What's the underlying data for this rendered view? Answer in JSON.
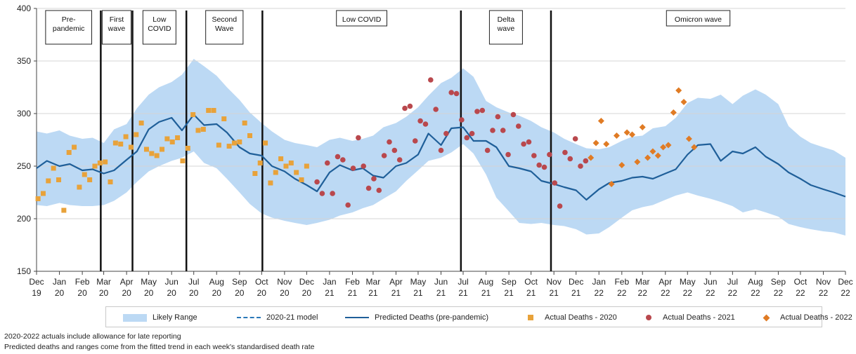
{
  "chart_data": {
    "type": "line",
    "ylim": [
      150,
      400
    ],
    "yticks": [
      150,
      200,
      250,
      300,
      350,
      400
    ],
    "x_range": [
      "2019-12-01",
      "2022-12-01"
    ],
    "x_ticks": [
      {
        "date": "2019-12-01",
        "label": [
          "Dec",
          "19"
        ]
      },
      {
        "date": "2020-01-01",
        "label": [
          "Jan",
          "20"
        ]
      },
      {
        "date": "2020-02-01",
        "label": [
          "Feb",
          "20"
        ]
      },
      {
        "date": "2020-03-01",
        "label": [
          "Mar",
          "20"
        ]
      },
      {
        "date": "2020-04-01",
        "label": [
          "Apr",
          "20"
        ]
      },
      {
        "date": "2020-05-01",
        "label": [
          "May",
          "20"
        ]
      },
      {
        "date": "2020-06-01",
        "label": [
          "Jun",
          "20"
        ]
      },
      {
        "date": "2020-07-01",
        "label": [
          "Jul",
          "20"
        ]
      },
      {
        "date": "2020-08-01",
        "label": [
          "Aug",
          "20"
        ]
      },
      {
        "date": "2020-09-01",
        "label": [
          "Sep",
          "20"
        ]
      },
      {
        "date": "2020-10-01",
        "label": [
          "Oct",
          "20"
        ]
      },
      {
        "date": "2020-11-01",
        "label": [
          "Nov",
          "20"
        ]
      },
      {
        "date": "2020-12-01",
        "label": [
          "Dec",
          "20"
        ]
      },
      {
        "date": "2021-01-01",
        "label": [
          "Jan",
          "21"
        ]
      },
      {
        "date": "2021-02-01",
        "label": [
          "Feb",
          "21"
        ]
      },
      {
        "date": "2021-03-01",
        "label": [
          "Mar",
          "21"
        ]
      },
      {
        "date": "2021-04-01",
        "label": [
          "Apr",
          "21"
        ]
      },
      {
        "date": "2021-05-01",
        "label": [
          "May",
          "21"
        ]
      },
      {
        "date": "2021-06-01",
        "label": [
          "Jun",
          "21"
        ]
      },
      {
        "date": "2021-07-01",
        "label": [
          "Jul",
          "21"
        ]
      },
      {
        "date": "2021-08-01",
        "label": [
          "Aug",
          "21"
        ]
      },
      {
        "date": "2021-09-01",
        "label": [
          "Sep",
          "21"
        ]
      },
      {
        "date": "2021-10-01",
        "label": [
          "Oct",
          "21"
        ]
      },
      {
        "date": "2021-11-01",
        "label": [
          "Nov",
          "21"
        ]
      },
      {
        "date": "2021-12-01",
        "label": [
          "Dec",
          "21"
        ]
      },
      {
        "date": "2022-01-01",
        "label": [
          "Jan",
          "22"
        ]
      },
      {
        "date": "2022-02-01",
        "label": [
          "Feb",
          "22"
        ]
      },
      {
        "date": "2022-03-01",
        "label": [
          "Mar",
          "22"
        ]
      },
      {
        "date": "2022-04-01",
        "label": [
          "Apr",
          "22"
        ]
      },
      {
        "date": "2022-05-01",
        "label": [
          "May",
          "22"
        ]
      },
      {
        "date": "2022-06-01",
        "label": [
          "Jun",
          "22"
        ]
      },
      {
        "date": "2022-07-01",
        "label": [
          "Jul",
          "22"
        ]
      },
      {
        "date": "2022-08-01",
        "label": [
          "Aug",
          "22"
        ]
      },
      {
        "date": "2022-09-01",
        "label": [
          "Sep",
          "22"
        ]
      },
      {
        "date": "2022-10-01",
        "label": [
          "Oct",
          "22"
        ]
      },
      {
        "date": "2022-11-01",
        "label": [
          "Nov",
          "22"
        ]
      },
      {
        "date": "2022-12-01",
        "label": [
          "Dec",
          "22"
        ]
      }
    ],
    "phases": [
      {
        "label": [
          "Pre-",
          "pandemic"
        ],
        "start": "2019-12-01",
        "end": "2020-02-26"
      },
      {
        "label": [
          "First",
          "wave"
        ],
        "start": "2020-02-26",
        "end": "2020-04-09"
      },
      {
        "label": [
          "Low",
          "COVID"
        ],
        "start": "2020-04-09",
        "end": "2020-06-21"
      },
      {
        "label": [
          "Second",
          "Wave"
        ],
        "start": "2020-06-21",
        "end": "2020-10-02"
      },
      {
        "label": [
          "Low COVID"
        ],
        "start": "2020-10-02",
        "end": "2021-06-28"
      },
      {
        "label": [
          "Delta",
          "wave"
        ],
        "start": "2021-06-28",
        "end": "2021-10-28"
      },
      {
        "label": [
          "Omicron wave"
        ],
        "start": "2021-10-28",
        "end": "2022-12-01"
      }
    ],
    "dividers": [
      "2020-02-26",
      "2020-04-09",
      "2020-06-21",
      "2020-10-02",
      "2021-06-28",
      "2021-10-28"
    ],
    "series": [
      {
        "name": "Likely Range",
        "kind": "band",
        "color": "#bcd9f4",
        "x": [
          "2019-12-01",
          "2019-12-15",
          "2020-01-01",
          "2020-01-15",
          "2020-02-01",
          "2020-02-15",
          "2020-03-01",
          "2020-03-15",
          "2020-04-01",
          "2020-04-15",
          "2020-05-01",
          "2020-05-15",
          "2020-06-01",
          "2020-06-15",
          "2020-07-01",
          "2020-07-15",
          "2020-08-01",
          "2020-08-15",
          "2020-09-01",
          "2020-09-15",
          "2020-10-01",
          "2020-10-15",
          "2020-11-01",
          "2020-11-15",
          "2020-12-01",
          "2020-12-15",
          "2021-01-01",
          "2021-01-15",
          "2021-02-01",
          "2021-02-15",
          "2021-03-01",
          "2021-03-15",
          "2021-04-01",
          "2021-04-15",
          "2021-05-01",
          "2021-05-15",
          "2021-06-01",
          "2021-06-15",
          "2021-07-01",
          "2021-07-15",
          "2021-08-01",
          "2021-08-15",
          "2021-09-01",
          "2021-09-15",
          "2021-10-01",
          "2021-10-15",
          "2021-11-01",
          "2021-11-15",
          "2021-12-01",
          "2021-12-15",
          "2022-01-01",
          "2022-01-15",
          "2022-02-01",
          "2022-02-15",
          "2022-03-01",
          "2022-03-15",
          "2022-04-01",
          "2022-04-15",
          "2022-05-01",
          "2022-05-15",
          "2022-06-01",
          "2022-06-15",
          "2022-07-01",
          "2022-07-15",
          "2022-08-01",
          "2022-08-15",
          "2022-09-01",
          "2022-09-15",
          "2022-10-01",
          "2022-10-15",
          "2022-11-01",
          "2022-11-15",
          "2022-12-01"
        ],
        "upper": [
          283,
          281,
          284,
          279,
          276,
          277,
          272,
          285,
          290,
          305,
          318,
          325,
          330,
          337,
          352,
          345,
          336,
          325,
          313,
          301,
          291,
          283,
          275,
          272,
          270,
          268,
          275,
          277,
          274,
          276,
          279,
          287,
          291,
          297,
          306,
          317,
          329,
          334,
          343,
          335,
          312,
          306,
          301,
          298,
          293,
          287,
          282,
          276,
          271,
          267,
          266,
          268,
          274,
          278,
          279,
          286,
          288,
          296,
          310,
          315,
          314,
          318,
          309,
          317,
          323,
          318,
          309,
          288,
          278,
          272,
          268,
          265,
          258
        ],
        "lower": [
          213,
          212,
          215,
          213,
          212,
          212,
          213,
          217,
          225,
          235,
          245,
          250,
          255,
          258,
          264,
          253,
          248,
          238,
          225,
          214,
          205,
          201,
          198,
          196,
          194,
          196,
          199,
          203,
          206,
          210,
          213,
          219,
          226,
          236,
          246,
          255,
          258,
          263,
          271,
          262,
          242,
          220,
          207,
          196,
          195,
          196,
          194,
          193,
          190,
          185,
          186,
          192,
          201,
          208,
          211,
          213,
          218,
          222,
          225,
          222,
          219,
          216,
          212,
          206,
          209,
          206,
          202,
          195,
          192,
          190,
          188,
          187,
          184
        ]
      },
      {
        "name": "Predicted Deaths (pre-pandemic)",
        "kind": "line",
        "color": "#1f5f99",
        "x": [
          "2019-12-01",
          "2019-12-15",
          "2020-01-01",
          "2020-01-15",
          "2020-02-01",
          "2020-02-15",
          "2020-03-01",
          "2020-03-15",
          "2020-04-01",
          "2020-04-15",
          "2020-05-01",
          "2020-05-15",
          "2020-06-01",
          "2020-06-15",
          "2020-07-01",
          "2020-07-15",
          "2020-08-01",
          "2020-08-15",
          "2020-09-01",
          "2020-09-15",
          "2020-10-01",
          "2020-10-15",
          "2020-11-01",
          "2020-11-15",
          "2020-12-01",
          "2020-12-15",
          "2021-01-01",
          "2021-01-15",
          "2021-02-01",
          "2021-02-15",
          "2021-03-01",
          "2021-03-15",
          "2021-04-01",
          "2021-04-15",
          "2021-05-01",
          "2021-05-15",
          "2021-06-01",
          "2021-06-15",
          "2021-07-01",
          "2021-07-15",
          "2021-08-01",
          "2021-08-15",
          "2021-09-01",
          "2021-09-15",
          "2021-10-01",
          "2021-10-15",
          "2021-11-01",
          "2021-11-15",
          "2021-12-01",
          "2021-12-15",
          "2022-01-01",
          "2022-01-15",
          "2022-02-01",
          "2022-02-15",
          "2022-03-01",
          "2022-03-15",
          "2022-04-01",
          "2022-04-15",
          "2022-05-01",
          "2022-05-15",
          "2022-06-01",
          "2022-06-15",
          "2022-07-01",
          "2022-07-15",
          "2022-08-01",
          "2022-08-15",
          "2022-09-01",
          "2022-09-15",
          "2022-10-01",
          "2022-10-15",
          "2022-11-01",
          "2022-11-15",
          "2022-12-01"
        ],
        "y": [
          248,
          255,
          250,
          252,
          246,
          247,
          243,
          246,
          256,
          264,
          285,
          292,
          296,
          284,
          299,
          289,
          290,
          282,
          268,
          262,
          260,
          250,
          245,
          238,
          232,
          226,
          244,
          251,
          246,
          248,
          241,
          239,
          250,
          253,
          261,
          281,
          270,
          286,
          287,
          274,
          274,
          268,
          250,
          248,
          245,
          236,
          233,
          230,
          227,
          218,
          228,
          234,
          236,
          239,
          240,
          238,
          243,
          247,
          261,
          270,
          271,
          255,
          264,
          262,
          268,
          259,
          252,
          244,
          238,
          232,
          228,
          225,
          221
        ]
      },
      {
        "name": "2020-21 model",
        "kind": "dashed",
        "color": "#2a78b8",
        "x": [],
        "y": []
      },
      {
        "name": "Actual Deaths - 2020",
        "kind": "square",
        "color": "#e8a23a",
        "x": [
          "2019-12-03",
          "2019-12-10",
          "2019-12-17",
          "2019-12-24",
          "2019-12-31",
          "2020-01-07",
          "2020-01-14",
          "2020-01-21",
          "2020-01-28",
          "2020-02-04",
          "2020-02-11",
          "2020-02-18",
          "2020-02-25",
          "2020-03-03",
          "2020-03-10",
          "2020-03-17",
          "2020-03-24",
          "2020-03-31",
          "2020-04-07",
          "2020-04-14",
          "2020-04-21",
          "2020-04-28",
          "2020-05-05",
          "2020-05-12",
          "2020-05-19",
          "2020-05-26",
          "2020-06-02",
          "2020-06-09",
          "2020-06-16",
          "2020-06-23",
          "2020-06-30",
          "2020-07-07",
          "2020-07-14",
          "2020-07-21",
          "2020-07-28",
          "2020-08-04",
          "2020-08-11",
          "2020-08-18",
          "2020-08-25",
          "2020-09-01",
          "2020-09-08",
          "2020-09-15",
          "2020-09-22",
          "2020-09-29",
          "2020-10-06",
          "2020-10-13",
          "2020-10-20",
          "2020-10-27",
          "2020-11-03",
          "2020-11-10",
          "2020-11-17",
          "2020-11-24",
          "2020-12-01"
        ],
        "y": [
          219,
          224,
          236,
          248,
          237,
          208,
          263,
          268,
          230,
          242,
          237,
          250,
          253,
          254,
          235,
          272,
          271,
          278,
          268,
          280,
          291,
          266,
          262,
          260,
          266,
          276,
          273,
          277,
          255,
          267,
          299,
          284,
          285,
          303,
          303,
          270,
          295,
          269,
          272,
          273,
          291,
          279,
          243,
          253,
          272,
          234,
          244,
          257,
          250,
          253,
          244,
          237,
          250
        ]
      },
      {
        "name": "Actual Deaths - 2021",
        "kind": "circle",
        "color": "#b9484d",
        "x": [
          "2020-12-15",
          "2020-12-22",
          "2020-12-29",
          "2021-01-05",
          "2021-01-12",
          "2021-01-19",
          "2021-01-26",
          "2021-02-02",
          "2021-02-09",
          "2021-02-16",
          "2021-02-23",
          "2021-03-02",
          "2021-03-09",
          "2021-03-16",
          "2021-03-23",
          "2021-03-30",
          "2021-04-06",
          "2021-04-13",
          "2021-04-20",
          "2021-04-27",
          "2021-05-04",
          "2021-05-11",
          "2021-05-18",
          "2021-05-25",
          "2021-06-01",
          "2021-06-08",
          "2021-06-15",
          "2021-06-22",
          "2021-06-29",
          "2021-07-06",
          "2021-07-13",
          "2021-07-20",
          "2021-07-27",
          "2021-08-03",
          "2021-08-10",
          "2021-08-17",
          "2021-08-24",
          "2021-08-31",
          "2021-09-07",
          "2021-09-14",
          "2021-09-21",
          "2021-09-28",
          "2021-10-05",
          "2021-10-12",
          "2021-10-19",
          "2021-10-26",
          "2021-11-02",
          "2021-11-09",
          "2021-11-16",
          "2021-11-23",
          "2021-11-30",
          "2021-12-07",
          "2021-12-14"
        ],
        "y": [
          235,
          224,
          253,
          224,
          259,
          256,
          213,
          248,
          277,
          250,
          229,
          238,
          227,
          260,
          273,
          265,
          256,
          305,
          307,
          274,
          293,
          290,
          332,
          304,
          265,
          281,
          320,
          319,
          294,
          277,
          281,
          302,
          303,
          265,
          284,
          297,
          284,
          261,
          299,
          288,
          271,
          273,
          260,
          251,
          249,
          261,
          234,
          212,
          263,
          257,
          276,
          250,
          255
        ]
      },
      {
        "name": "Actual Deaths - 2022",
        "kind": "diamond",
        "color": "#e07b24",
        "x": [
          "2021-12-21",
          "2021-12-28",
          "2022-01-04",
          "2022-01-11",
          "2022-01-18",
          "2022-01-25",
          "2022-02-01",
          "2022-02-08",
          "2022-02-15",
          "2022-02-22",
          "2022-03-01",
          "2022-03-08",
          "2022-03-15",
          "2022-03-22",
          "2022-03-29",
          "2022-04-05",
          "2022-04-12",
          "2022-04-19",
          "2022-04-26",
          "2022-05-03",
          "2022-05-10"
        ],
        "y": [
          258,
          272,
          293,
          271,
          233,
          279,
          251,
          282,
          280,
          254,
          287,
          258,
          264,
          260,
          268,
          270,
          301,
          322,
          311,
          276,
          268
        ]
      }
    ]
  },
  "legend": [
    {
      "key": "band",
      "label": "Likely Range"
    },
    {
      "key": "dashed",
      "label": "2020-21 model"
    },
    {
      "key": "line",
      "label": "Predicted Deaths (pre-pandemic)"
    },
    {
      "key": "square",
      "label": "Actual Deaths - 2020"
    },
    {
      "key": "circle",
      "label": "Actual Deaths - 2021"
    },
    {
      "key": "diamond",
      "label": "Actual Deaths - 2022"
    }
  ],
  "footnotes": [
    "2020-2022 actuals include allowance for late reporting",
    "Predicted deaths and ranges come from the fitted trend in each week's standardised death rate"
  ]
}
